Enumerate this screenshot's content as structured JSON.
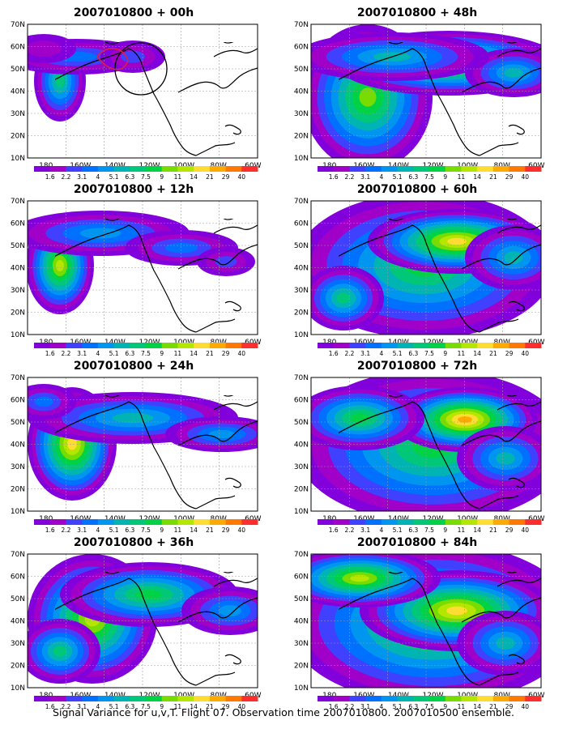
{
  "figure": {
    "caption": "Signal Variance for u,v,T. Flight 07. Observation time 2007010800. 2007010500 ensemble."
  },
  "axes": {
    "lat_ticks": [
      "70N",
      "60N",
      "50N",
      "40N",
      "30N",
      "20N",
      "10N"
    ],
    "lon_ticks": [
      "180",
      "160W",
      "140W",
      "120W",
      "100W",
      "80W",
      "60W"
    ]
  },
  "colorbar": {
    "levels": [
      "1.6",
      "2.2",
      "3.1",
      "4",
      "5.1",
      "6.3",
      "7.5",
      "9",
      "11",
      "14",
      "21",
      "29",
      "40"
    ],
    "colors": [
      "#8200dc",
      "#a000c8",
      "#4040ff",
      "#0070ff",
      "#0096f0",
      "#00b4b4",
      "#00c878",
      "#00d246",
      "#78dc00",
      "#b4e600",
      "#ffdc32",
      "#ffaa00",
      "#ff7800",
      "#ff2e2e"
    ]
  },
  "panels": [
    {
      "title": "2007010800 + 00h",
      "lead": "00h"
    },
    {
      "title": "2007010800 + 12h",
      "lead": "12h"
    },
    {
      "title": "2007010800 + 24h",
      "lead": "24h"
    },
    {
      "title": "2007010800 + 36h",
      "lead": "36h"
    },
    {
      "title": "2007010800 + 48h",
      "lead": "48h"
    },
    {
      "title": "2007010800 + 60h",
      "lead": "60h"
    },
    {
      "title": "2007010800 + 72h",
      "lead": "72h"
    },
    {
      "title": "2007010800 + 84h",
      "lead": "84h"
    }
  ]
}
